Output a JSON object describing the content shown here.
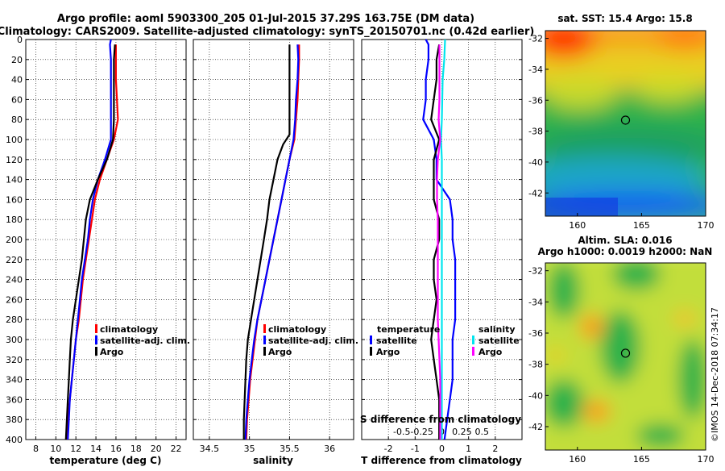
{
  "title": {
    "line1": "Argo profile: aoml 5903300_205 01-Jul-2015 37.29S 163.75E (DM data)",
    "line2": "Climatology: CARS2009. Satellite-adjusted climatology: synTS_20150701.nc (0.42d earlier)"
  },
  "sst_title": "sat. SST: 15.4 Argo: 15.8",
  "sla_title_1": "Altim. SLA: 0.016",
  "sla_title_2": "Argo h1000: 0.0019 h2000: NaN",
  "watermark": "©IMOS 14-Dec-2018 07:34:17",
  "colors": {
    "climatology": "#ff0000",
    "satellite": "#0000ff",
    "argo": "#000000",
    "s_satellite": "#00e5ee",
    "s_argo": "#ff00ff"
  },
  "depth_axis": {
    "ticks": [
      0,
      20,
      40,
      60,
      80,
      100,
      120,
      140,
      160,
      180,
      200,
      220,
      240,
      260,
      280,
      300,
      320,
      340,
      360,
      380,
      400
    ],
    "range": [
      0,
      400
    ]
  },
  "chart_data": [
    {
      "type": "line",
      "name": "temperature",
      "xlabel": "temperature (deg C)",
      "ylabel": "depth",
      "xlim": [
        7,
        23
      ],
      "ylim": [
        400,
        0
      ],
      "xticks": [
        8,
        10,
        12,
        14,
        16,
        18,
        20,
        22
      ],
      "legend": [
        "climatology",
        "satellite-adj. clim.",
        "Argo"
      ],
      "series": [
        {
          "name": "climatology",
          "color": "#ff0000",
          "points": [
            [
              16.0,
              5
            ],
            [
              16.0,
              20
            ],
            [
              16.0,
              40
            ],
            [
              16.1,
              60
            ],
            [
              16.2,
              80
            ],
            [
              15.8,
              100
            ],
            [
              15.1,
              120
            ],
            [
              14.4,
              140
            ],
            [
              13.9,
              160
            ],
            [
              13.6,
              180
            ],
            [
              13.3,
              200
            ],
            [
              13.0,
              220
            ],
            [
              12.7,
              240
            ],
            [
              12.5,
              260
            ],
            [
              12.3,
              280
            ],
            [
              12.0,
              300
            ],
            [
              11.8,
              320
            ],
            [
              11.6,
              340
            ],
            [
              11.4,
              360
            ],
            [
              11.2,
              380
            ],
            [
              11.1,
              400
            ]
          ]
        },
        {
          "name": "satellite-adj. clim.",
          "color": "#0000ff",
          "points": [
            [
              15.5,
              0
            ],
            [
              15.4,
              5
            ],
            [
              15.5,
              20
            ],
            [
              15.5,
              40
            ],
            [
              15.5,
              60
            ],
            [
              15.5,
              80
            ],
            [
              15.5,
              100
            ],
            [
              14.9,
              120
            ],
            [
              14.2,
              140
            ],
            [
              13.7,
              160
            ],
            [
              13.4,
              180
            ],
            [
              13.2,
              200
            ],
            [
              12.9,
              220
            ],
            [
              12.6,
              240
            ],
            [
              12.4,
              260
            ],
            [
              12.2,
              280
            ],
            [
              12.0,
              300
            ],
            [
              11.8,
              320
            ],
            [
              11.6,
              340
            ],
            [
              11.4,
              360
            ],
            [
              11.3,
              380
            ],
            [
              11.2,
              400
            ]
          ]
        },
        {
          "name": "Argo",
          "color": "#000000",
          "points": [
            [
              15.9,
              5
            ],
            [
              15.8,
              20
            ],
            [
              15.8,
              40
            ],
            [
              15.8,
              60
            ],
            [
              15.8,
              80
            ],
            [
              15.7,
              100
            ],
            [
              15.1,
              120
            ],
            [
              14.2,
              140
            ],
            [
              13.4,
              160
            ],
            [
              13.0,
              180
            ],
            [
              12.8,
              200
            ],
            [
              12.6,
              220
            ],
            [
              12.3,
              240
            ],
            [
              12.0,
              260
            ],
            [
              11.7,
              280
            ],
            [
              11.5,
              300
            ],
            [
              11.4,
              320
            ],
            [
              11.3,
              340
            ],
            [
              11.2,
              360
            ],
            [
              11.1,
              380
            ],
            [
              11.0,
              400
            ]
          ]
        }
      ]
    },
    {
      "type": "line",
      "name": "salinity",
      "xlabel": "salinity",
      "ylabel": "depth",
      "xlim": [
        34.3,
        36.3
      ],
      "ylim": [
        400,
        0
      ],
      "xticks": [
        34.5,
        35,
        35.5,
        36
      ],
      "xtick_labels": [
        "34.5",
        "35",
        "35.5",
        "36"
      ],
      "legend": [
        "climatology",
        "satellite-adj. clim.",
        "Argo"
      ],
      "series": [
        {
          "name": "climatology",
          "color": "#ff0000",
          "points": [
            [
              35.62,
              5
            ],
            [
              35.62,
              20
            ],
            [
              35.61,
              40
            ],
            [
              35.6,
              60
            ],
            [
              35.58,
              80
            ],
            [
              35.56,
              100
            ],
            [
              35.5,
              120
            ],
            [
              35.45,
              140
            ],
            [
              35.4,
              160
            ],
            [
              35.35,
              180
            ],
            [
              35.3,
              200
            ],
            [
              35.25,
              220
            ],
            [
              35.2,
              240
            ],
            [
              35.15,
              260
            ],
            [
              35.1,
              280
            ],
            [
              35.07,
              300
            ],
            [
              35.04,
              320
            ],
            [
              35.01,
              340
            ],
            [
              34.99,
              360
            ],
            [
              34.97,
              380
            ],
            [
              34.96,
              400
            ]
          ]
        },
        {
          "name": "satellite-adj. clim.",
          "color": "#0000ff",
          "points": [
            [
              35.6,
              5
            ],
            [
              35.61,
              20
            ],
            [
              35.6,
              40
            ],
            [
              35.58,
              60
            ],
            [
              35.57,
              80
            ],
            [
              35.55,
              100
            ],
            [
              35.5,
              120
            ],
            [
              35.45,
              140
            ],
            [
              35.4,
              160
            ],
            [
              35.35,
              180
            ],
            [
              35.3,
              200
            ],
            [
              35.25,
              220
            ],
            [
              35.2,
              240
            ],
            [
              35.15,
              260
            ],
            [
              35.1,
              280
            ],
            [
              35.06,
              300
            ],
            [
              35.03,
              320
            ],
            [
              35.0,
              340
            ],
            [
              34.98,
              360
            ],
            [
              34.96,
              380
            ],
            [
              34.95,
              400
            ]
          ]
        },
        {
          "name": "Argo",
          "color": "#000000",
          "points": [
            [
              35.5,
              5
            ],
            [
              35.5,
              20
            ],
            [
              35.5,
              40
            ],
            [
              35.5,
              60
            ],
            [
              35.5,
              80
            ],
            [
              35.5,
              95
            ],
            [
              35.42,
              105
            ],
            [
              35.35,
              120
            ],
            [
              35.3,
              140
            ],
            [
              35.25,
              160
            ],
            [
              35.22,
              180
            ],
            [
              35.18,
              200
            ],
            [
              35.14,
              220
            ],
            [
              35.1,
              240
            ],
            [
              35.06,
              260
            ],
            [
              35.02,
              280
            ],
            [
              34.98,
              300
            ],
            [
              34.96,
              320
            ],
            [
              34.95,
              340
            ],
            [
              34.94,
              360
            ],
            [
              34.93,
              380
            ],
            [
              34.93,
              400
            ]
          ]
        }
      ]
    },
    {
      "type": "line",
      "name": "difference from climatology",
      "xlabel": "T difference from climatology",
      "x2label": "S difference from climatology",
      "ylabel": "depth",
      "xlim": [
        -3,
        3
      ],
      "ylim": [
        400,
        0
      ],
      "xticks": [
        -2,
        -1,
        0,
        1,
        2
      ],
      "xtick_labels": [
        "-2",
        "-1",
        "0",
        "1",
        "2"
      ],
      "s_xticks": [
        -0.5,
        -0.25,
        0,
        0.25,
        0.5
      ],
      "s_xtick_labels": [
        "-0.5",
        "-0.25",
        "0",
        "0.25",
        "0.5"
      ],
      "legend_temperature": {
        "title": "temperature",
        "items": [
          "satellite",
          "Argo"
        ]
      },
      "legend_salinity": {
        "title": "salinity",
        "items": [
          "satellite",
          "Argo"
        ]
      },
      "series": [
        {
          "name": "T satellite",
          "color": "#0000ff",
          "points": [
            [
              -0.6,
              0
            ],
            [
              -0.5,
              5
            ],
            [
              -0.5,
              20
            ],
            [
              -0.6,
              40
            ],
            [
              -0.6,
              60
            ],
            [
              -0.7,
              80
            ],
            [
              -0.3,
              100
            ],
            [
              -0.2,
              120
            ],
            [
              -0.2,
              140
            ],
            [
              0.3,
              160
            ],
            [
              0.4,
              180
            ],
            [
              0.4,
              200
            ],
            [
              0.5,
              220
            ],
            [
              0.5,
              240
            ],
            [
              0.5,
              260
            ],
            [
              0.5,
              280
            ],
            [
              0.4,
              300
            ],
            [
              0.4,
              320
            ],
            [
              0.4,
              340
            ],
            [
              0.3,
              360
            ],
            [
              0.2,
              380
            ],
            [
              0.1,
              400
            ]
          ]
        },
        {
          "name": "T Argo",
          "color": "#000000",
          "points": [
            [
              -0.1,
              5
            ],
            [
              -0.2,
              20
            ],
            [
              -0.2,
              40
            ],
            [
              -0.3,
              60
            ],
            [
              -0.4,
              80
            ],
            [
              -0.1,
              100
            ],
            [
              -0.3,
              120
            ],
            [
              -0.3,
              140
            ],
            [
              -0.3,
              160
            ],
            [
              -0.1,
              180
            ],
            [
              -0.1,
              200
            ],
            [
              -0.3,
              220
            ],
            [
              -0.3,
              240
            ],
            [
              -0.2,
              260
            ],
            [
              -0.3,
              280
            ],
            [
              -0.4,
              300
            ],
            [
              -0.3,
              320
            ],
            [
              -0.2,
              340
            ],
            [
              -0.1,
              360
            ],
            [
              -0.1,
              380
            ],
            [
              -0.1,
              400
            ]
          ]
        },
        {
          "name": "S satellite",
          "color": "#00e5ee",
          "points": [
            [
              0.04,
              0
            ],
            [
              0.03,
              20
            ],
            [
              0.01,
              40
            ],
            [
              0.0,
              80
            ],
            [
              -0.01,
              100
            ],
            [
              0.0,
              120
            ],
            [
              0.0,
              200
            ],
            [
              0.0,
              300
            ],
            [
              0.0,
              400
            ]
          ]
        },
        {
          "name": "S Argo",
          "color": "#ff00ff",
          "points": [
            [
              -0.03,
              5
            ],
            [
              -0.03,
              20
            ],
            [
              -0.03,
              40
            ],
            [
              -0.03,
              60
            ],
            [
              -0.04,
              80
            ],
            [
              -0.02,
              100
            ],
            [
              -0.05,
              120
            ],
            [
              -0.06,
              140
            ],
            [
              -0.06,
              160
            ],
            [
              -0.05,
              180
            ],
            [
              -0.05,
              200
            ],
            [
              -0.05,
              220
            ],
            [
              -0.05,
              240
            ],
            [
              -0.05,
              260
            ],
            [
              -0.05,
              280
            ],
            [
              -0.04,
              300
            ],
            [
              -0.03,
              320
            ],
            [
              -0.02,
              340
            ],
            [
              -0.02,
              360
            ],
            [
              -0.02,
              380
            ],
            [
              -0.02,
              400
            ]
          ]
        }
      ]
    },
    {
      "type": "heatmap",
      "name": "sat SST map",
      "xlim": [
        157.5,
        170
      ],
      "ylim": [
        -43.5,
        -31.5
      ],
      "xticks": [
        160,
        165,
        170
      ],
      "yticks": [
        -32,
        -34,
        -36,
        -38,
        -40,
        -42
      ],
      "marker": {
        "lon": 163.75,
        "lat": -37.29
      }
    },
    {
      "type": "heatmap",
      "name": "altimetry SLA map",
      "xlim": [
        157.5,
        170
      ],
      "ylim": [
        -43.5,
        -31.5
      ],
      "xticks": [
        160,
        165,
        170
      ],
      "yticks": [
        -32,
        -34,
        -36,
        -38,
        -40,
        -42
      ],
      "marker": {
        "lon": 163.75,
        "lat": -37.29
      }
    }
  ]
}
